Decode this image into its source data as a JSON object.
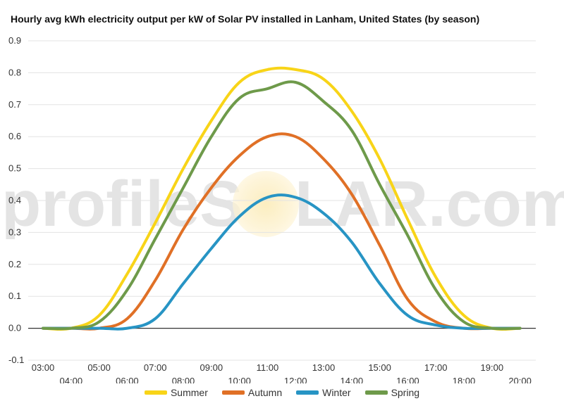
{
  "chart_data": {
    "type": "line",
    "title": "Hourly avg kWh electricity output per kW of Solar PV installed in Lanham, United States (by season)",
    "watermark": {
      "left": "profileS",
      "right": "LAR.com"
    },
    "x": [
      "03:00",
      "04:00",
      "05:00",
      "06:00",
      "07:00",
      "08:00",
      "09:00",
      "10:00",
      "11:00",
      "12:00",
      "13:00",
      "14:00",
      "15:00",
      "16:00",
      "17:00",
      "18:00",
      "19:00",
      "20:00"
    ],
    "ylim": [
      -0.1,
      0.9
    ],
    "yticks": [
      -0.1,
      0.0,
      0.1,
      0.2,
      0.3,
      0.4,
      0.5,
      0.6,
      0.7,
      0.8,
      0.9
    ],
    "ytick_labels": [
      "-0.1",
      "0.0",
      "0.1",
      "0.2",
      "0.3",
      "0.4",
      "0.5",
      "0.6",
      "0.7",
      "0.8",
      "0.9"
    ],
    "grid": true,
    "legend_position": "bottom",
    "series": [
      {
        "name": "Summer",
        "color": "#f8d418",
        "values": [
          0.0,
          0.0,
          0.04,
          0.17,
          0.33,
          0.5,
          0.65,
          0.77,
          0.81,
          0.81,
          0.78,
          0.68,
          0.53,
          0.34,
          0.16,
          0.04,
          0.0,
          0.0
        ]
      },
      {
        "name": "Autumn",
        "color": "#e07026",
        "values": [
          0.0,
          0.0,
          0.0,
          0.03,
          0.15,
          0.31,
          0.44,
          0.54,
          0.6,
          0.6,
          0.53,
          0.42,
          0.26,
          0.09,
          0.02,
          0.0,
          0.0,
          0.0
        ]
      },
      {
        "name": "Winter",
        "color": "#2794c4",
        "values": [
          0.0,
          0.0,
          0.0,
          0.0,
          0.03,
          0.14,
          0.25,
          0.35,
          0.41,
          0.41,
          0.36,
          0.27,
          0.14,
          0.04,
          0.01,
          0.0,
          0.0,
          0.0
        ]
      },
      {
        "name": "Spring",
        "color": "#6e9a4a",
        "values": [
          0.0,
          0.0,
          0.02,
          0.12,
          0.28,
          0.44,
          0.6,
          0.72,
          0.75,
          0.77,
          0.71,
          0.62,
          0.45,
          0.29,
          0.12,
          0.02,
          0.0,
          0.0
        ]
      }
    ]
  }
}
